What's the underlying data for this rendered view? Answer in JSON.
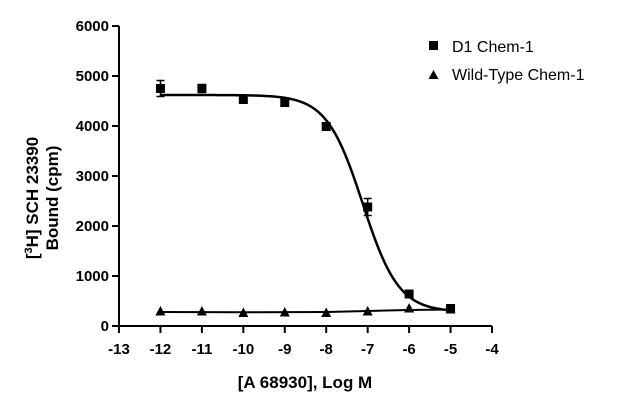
{
  "chart_data": {
    "type": "scatter",
    "xlabel": "[A 68930], Log M",
    "ylabel_parts": {
      "pre": "[",
      "sup": "3",
      "post": "H] SCH 23390",
      "line2": "Bound (cpm)"
    },
    "xlim": [
      -13,
      -4
    ],
    "ylim": [
      0,
      6000
    ],
    "x_ticks": [
      "-13",
      "-12",
      "-11",
      "-10",
      "-9",
      "-8",
      "-7",
      "-6",
      "-5",
      "-4"
    ],
    "y_ticks": [
      "0",
      "1000",
      "2000",
      "3000",
      "4000",
      "5000",
      "6000"
    ],
    "grid": false,
    "legend_position": "top-right",
    "series": [
      {
        "name": "D1 Chem-1",
        "marker": "square",
        "x": [
          -12,
          -11,
          -10,
          -9,
          -8,
          -7,
          -6,
          -5
        ],
        "y": [
          4750,
          4750,
          4530,
          4470,
          3990,
          2380,
          640,
          350
        ],
        "error": [
          160,
          80,
          60,
          60,
          60,
          170,
          40,
          40
        ],
        "fit": {
          "model": "sigmoid",
          "top": 4620,
          "bottom": 280,
          "logEC50": -7.12,
          "hill": -1.0
        }
      },
      {
        "name": "Wild-Type Chem-1",
        "marker": "triangle",
        "x": [
          -12,
          -11,
          -10,
          -9,
          -8,
          -7,
          -6,
          -5
        ],
        "y": [
          290,
          290,
          260,
          270,
          260,
          290,
          350,
          330
        ],
        "fit": {
          "model": "line",
          "x": [
            -12,
            -10,
            -8,
            -7,
            -6,
            -5
          ],
          "y": [
            280,
            275,
            280,
            300,
            320,
            330
          ]
        }
      }
    ]
  }
}
